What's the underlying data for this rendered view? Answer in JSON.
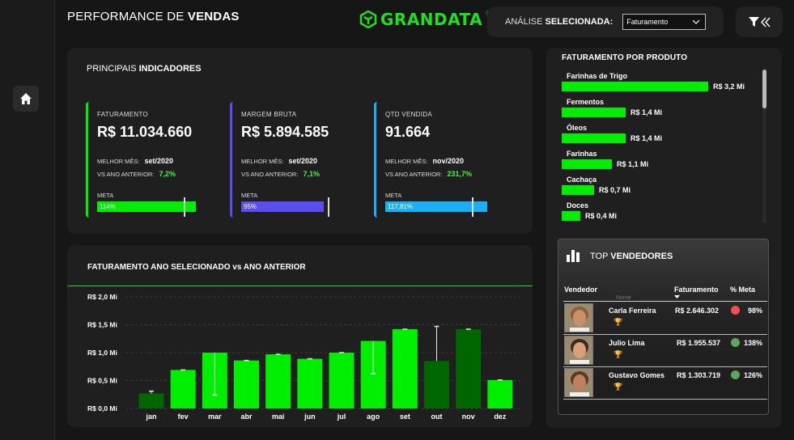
{
  "header": {
    "title_light": "PERFORMANCE DE ",
    "title_bold": "VENDAS",
    "logo_text": "GRANDATA",
    "logo_reg": "®",
    "analysis_label_light": "ANÁLISE ",
    "analysis_label_bold": "SELECIONADA:",
    "analysis_value": "Faturamento"
  },
  "indicators": {
    "title_light": "PRINCIPAIS ",
    "title_bold": "INDICADORES",
    "kpis": [
      {
        "label": "FATURAMENTO",
        "value": "R$ 11.034.660",
        "best_label": "MELHOR MÊS:",
        "best_value": "set/2020",
        "vs_label": "VS ANO ANTERIOR:",
        "vs_value": "7,2%",
        "meta_label": "META",
        "meta_pct": "114%",
        "meta_fraction": 1.14,
        "color": "#00ee00"
      },
      {
        "label": "MARGEM BRUTA",
        "value": "R$ 5.894.585",
        "best_label": "MELHOR MÊS:",
        "best_value": "set/2020",
        "vs_label": "VS ANO ANTERIOR:",
        "vs_value": "7,1%",
        "meta_label": "META",
        "meta_pct": "95%",
        "meta_fraction": 0.95,
        "color": "#5b4ef0"
      },
      {
        "label": "QTD VENDIDA",
        "value": "91.664",
        "best_label": "MELHOR MÊS:",
        "best_value": "nov/2020",
        "vs_label": "VS ANO ANTERIOR:",
        "vs_value": "231,7%",
        "meta_label": "META",
        "meta_pct": "117,81%",
        "meta_fraction": 1.1781,
        "color": "#1ab0f5"
      }
    ]
  },
  "chart_data": {
    "type": "bar",
    "title": "FATURAMENTO ANO SELECIONADO vs ANO ANTERIOR",
    "categories": [
      "jan",
      "fev",
      "mar",
      "abr",
      "mai",
      "jun",
      "jul",
      "ago",
      "set",
      "out",
      "nov",
      "dez"
    ],
    "series": [
      {
        "values": [
          0.27,
          0.69,
          1.0,
          0.86,
          0.97,
          0.89,
          1.0,
          1.21,
          1.42,
          0.85,
          1.42,
          0.51
        ]
      }
    ],
    "previous_year": [
      0.31,
      0.69,
      0.24,
      0.86,
      0.97,
      0.89,
      1.0,
      0.62,
      1.42,
      1.47,
      1.42,
      0.51
    ],
    "highlight_dark": [
      "jan",
      "out",
      "nov"
    ],
    "y_ticks": [
      "R$ 0,0 Mi",
      "R$ 0,5 Mi",
      "R$ 1,0 Mi",
      "R$ 1,5 Mi",
      "R$ 2,0 Mi"
    ],
    "ylim": [
      0,
      2.0
    ],
    "grid": true,
    "colors": {
      "bright": "#00ee00",
      "dark": "#006600"
    }
  },
  "products": {
    "title": "FATURAMENTO POR PRODUTO",
    "items": [
      {
        "name": "Farinhas de Trigo",
        "value_label": "R$ 3,2 Mi",
        "value": 3.2
      },
      {
        "name": "Fermentos",
        "value_label": "R$ 1,4 Mi",
        "value": 1.4
      },
      {
        "name": "Óleos",
        "value_label": "R$ 1,4 Mi",
        "value": 1.4
      },
      {
        "name": "Farinhas",
        "value_label": "R$ 1,1 Mi",
        "value": 1.1
      },
      {
        "name": "Cachaça",
        "value_label": "R$ 0,7 Mi",
        "value": 0.7
      },
      {
        "name": "Doces",
        "value_label": "R$ 0,4 Mi",
        "value": 0.4
      }
    ]
  },
  "vendors": {
    "title_light": "TOP ",
    "title_bold": "VENDEDORES",
    "col_vendor": "Vendedor",
    "col_name": "Nome",
    "col_fat": "Faturamento",
    "col_meta": "% Meta",
    "rows": [
      {
        "name": "Carla Ferreira",
        "fat": "R$ 2.646.302",
        "meta": "98%",
        "dot": "#f05050",
        "trophy": "🏆",
        "trophy_color": "#d4a020"
      },
      {
        "name": "Julio Lima",
        "fat": "R$ 1.955.537",
        "meta": "138%",
        "dot": "#5aa85a",
        "trophy": "🏆",
        "trophy_color": "#cccccc"
      },
      {
        "name": "Gustavo Gomes",
        "fat": "R$ 1.303.719",
        "meta": "126%",
        "dot": "#5aa85a",
        "trophy": "🏆",
        "trophy_color": "#b07030"
      }
    ]
  }
}
